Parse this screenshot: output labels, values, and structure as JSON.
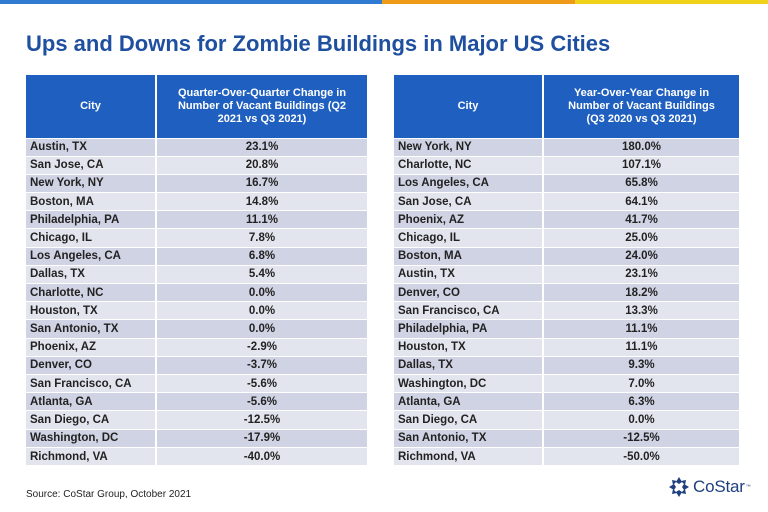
{
  "colors": {
    "topbar": [
      "#2e7bd1",
      "#f09a1a",
      "#f0d21a"
    ],
    "header_bg": "#1f5fbf",
    "title": "#1f4f9f",
    "row_dark": "#cfd3e3",
    "row_light": "#e3e5ee"
  },
  "title": "Ups and Downs for Zombie Buildings in Major US Cities",
  "left_table": {
    "headers": [
      "City",
      "Quarter-Over-Quarter Change in Number of Vacant Buildings (Q2 2021 vs Q3 2021)"
    ],
    "rows": [
      [
        "Austin, TX",
        "23.1%"
      ],
      [
        "San Jose, CA",
        "20.8%"
      ],
      [
        "New York, NY",
        "16.7%"
      ],
      [
        "Boston, MA",
        "14.8%"
      ],
      [
        "Philadelphia, PA",
        "11.1%"
      ],
      [
        "Chicago, IL",
        "7.8%"
      ],
      [
        "Los Angeles, CA",
        "6.8%"
      ],
      [
        "Dallas, TX",
        "5.4%"
      ],
      [
        "Charlotte, NC",
        "0.0%"
      ],
      [
        "Houston, TX",
        "0.0%"
      ],
      [
        "San Antonio, TX",
        "0.0%"
      ],
      [
        "Phoenix, AZ",
        "-2.9%"
      ],
      [
        "Denver, CO",
        "-3.7%"
      ],
      [
        "San Francisco, CA",
        "-5.6%"
      ],
      [
        "Atlanta, GA",
        "-5.6%"
      ],
      [
        "San Diego, CA",
        "-12.5%"
      ],
      [
        "Washington, DC",
        "-17.9%"
      ],
      [
        "Richmond, VA",
        "-40.0%"
      ]
    ]
  },
  "right_table": {
    "headers": [
      "City",
      "Year-Over-Year Change in Number of Vacant Buildings (Q3 2020 vs Q3 2021)"
    ],
    "rows": [
      [
        "New York, NY",
        "180.0%"
      ],
      [
        "Charlotte, NC",
        "107.1%"
      ],
      [
        "Los Angeles, CA",
        "65.8%"
      ],
      [
        "San Jose, CA",
        "64.1%"
      ],
      [
        "Phoenix, AZ",
        "41.7%"
      ],
      [
        "Chicago, IL",
        "25.0%"
      ],
      [
        "Boston, MA",
        "24.0%"
      ],
      [
        "Austin, TX",
        "23.1%"
      ],
      [
        "Denver, CO",
        "18.2%"
      ],
      [
        "San Francisco, CA",
        "13.3%"
      ],
      [
        "Philadelphia, PA",
        "11.1%"
      ],
      [
        "Houston, TX",
        "11.1%"
      ],
      [
        "Dallas, TX",
        "9.3%"
      ],
      [
        "Washington, DC",
        "7.0%"
      ],
      [
        "Atlanta, GA",
        "6.3%"
      ],
      [
        "San Diego, CA",
        "0.0%"
      ],
      [
        "San Antonio, TX",
        "-12.5%"
      ],
      [
        "Richmond, VA",
        "-50.0%"
      ]
    ]
  },
  "source": "Source: CoStar Group, October 2021",
  "logo": {
    "text": "CoStar",
    "tm": "™",
    "icon": "costar-star-icon"
  }
}
